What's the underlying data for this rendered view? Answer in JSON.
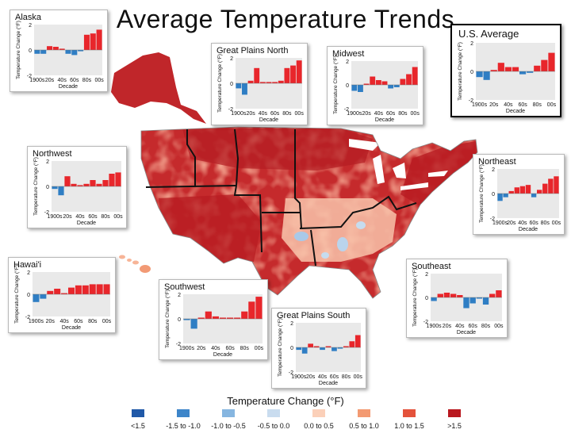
{
  "title": "Average Temperature Trends",
  "colors": {
    "positive": "#e8262b",
    "negative": "#2f7ec4",
    "plot_bg": "#e9e9e9",
    "map_red": [
      "#b31d23",
      "#d6352c",
      "#ec6a4e",
      "#f5a383",
      "#fbd2bd"
    ],
    "map_blue": [
      "#c7dcee",
      "#8fbcdf"
    ]
  },
  "chart_data": [
    {
      "type": "bar",
      "title": "Alaska",
      "categories": [
        "1900s",
        "10s",
        "20s",
        "30s",
        "40s",
        "50s",
        "60s",
        "70s",
        "80s",
        "90s",
        "00s"
      ],
      "tick_labels": [
        "1900s",
        "20s",
        "40s",
        "60s",
        "80s",
        "00s"
      ],
      "values": [
        -0.3,
        -0.3,
        0.3,
        0.25,
        0.1,
        -0.3,
        -0.4,
        -0.1,
        1.2,
        1.3,
        1.6
      ],
      "xlabel": "Decade",
      "ylabel": "Temperature Change (°F)",
      "ylim": [
        -2,
        2
      ],
      "yticks": [
        2,
        0,
        -2
      ],
      "grid": false
    },
    {
      "type": "bar",
      "title": "Great Plains North",
      "categories": [
        "1900s",
        "10s",
        "20s",
        "30s",
        "40s",
        "50s",
        "60s",
        "70s",
        "80s",
        "90s",
        "00s"
      ],
      "tick_labels": [
        "1900s",
        "20s",
        "40s",
        "60s",
        "80s",
        "00s"
      ],
      "values": [
        -0.4,
        -0.9,
        0.2,
        1.2,
        0.1,
        0.1,
        0.1,
        0.2,
        1.2,
        1.4,
        1.8
      ],
      "xlabel": "Decade",
      "ylabel": "Temperature Change (°F)",
      "ylim": [
        -2,
        2
      ],
      "yticks": [
        2,
        0,
        -2
      ],
      "grid": false
    },
    {
      "type": "bar",
      "title": "Midwest",
      "categories": [
        "1900s",
        "10s",
        "20s",
        "30s",
        "40s",
        "50s",
        "60s",
        "70s",
        "80s",
        "90s",
        "00s"
      ],
      "tick_labels": [
        "1900s",
        "20s",
        "40s",
        "60s",
        "80s",
        "00s"
      ],
      "values": [
        -0.5,
        -0.6,
        0.1,
        0.7,
        0.4,
        0.3,
        -0.3,
        -0.2,
        0.5,
        0.9,
        1.5
      ],
      "xlabel": "Decade",
      "ylabel": "Temperature Change (°F)",
      "ylim": [
        -2,
        2
      ],
      "yticks": [
        2,
        0,
        -2
      ],
      "grid": false
    },
    {
      "type": "bar",
      "title": "U.S. Average",
      "categories": [
        "1900s",
        "10s",
        "20s",
        "30s",
        "40s",
        "50s",
        "60s",
        "70s",
        "80s",
        "90s",
        "00s"
      ],
      "tick_labels": [
        "1900s",
        "20s",
        "40s",
        "60s",
        "80s",
        "00s"
      ],
      "values": [
        -0.4,
        -0.6,
        0.1,
        0.6,
        0.3,
        0.3,
        -0.2,
        -0.1,
        0.4,
        0.8,
        1.3
      ],
      "xlabel": "Decade",
      "ylabel": "Temperature Change (°F)",
      "ylim": [
        -2,
        2
      ],
      "yticks": [
        2,
        0,
        -2
      ],
      "grid": false
    },
    {
      "type": "bar",
      "title": "Northwest",
      "categories": [
        "1900s",
        "10s",
        "20s",
        "30s",
        "40s",
        "50s",
        "60s",
        "70s",
        "80s",
        "90s",
        "00s"
      ],
      "tick_labels": [
        "1900s",
        "20s",
        "40s",
        "60s",
        "80s",
        "00s"
      ],
      "values": [
        -0.2,
        -0.7,
        0.8,
        0.2,
        0.1,
        0.2,
        0.5,
        0.2,
        0.5,
        1.0,
        1.1
      ],
      "xlabel": "Decade",
      "ylabel": "Temperature Change (°F)",
      "ylim": [
        -2,
        2
      ],
      "yticks": [
        2,
        0,
        -2
      ],
      "grid": false
    },
    {
      "type": "bar",
      "title": "Northeast",
      "categories": [
        "1900s",
        "10s",
        "20s",
        "30s",
        "40s",
        "50s",
        "60s",
        "70s",
        "80s",
        "90s",
        "00s"
      ],
      "tick_labels": [
        "1900s",
        "20s",
        "40s",
        "60s",
        "80s",
        "00s"
      ],
      "values": [
        -0.6,
        -0.3,
        0.2,
        0.5,
        0.6,
        0.7,
        -0.3,
        0.3,
        0.8,
        1.2,
        1.4
      ],
      "xlabel": "Decade",
      "ylabel": "Temperature Change (°F)",
      "ylim": [
        -2,
        2
      ],
      "yticks": [
        2,
        0,
        -2
      ],
      "grid": false
    },
    {
      "type": "bar",
      "title": "Hawai'i",
      "categories": [
        "1900s",
        "10s",
        "20s",
        "30s",
        "40s",
        "50s",
        "60s",
        "70s",
        "80s",
        "90s",
        "00s"
      ],
      "tick_labels": [
        "1900s",
        "20s",
        "40s",
        "60s",
        "80s",
        "00s"
      ],
      "values": [
        -0.7,
        -0.4,
        0.3,
        0.5,
        0.1,
        0.6,
        0.8,
        0.8,
        0.9,
        0.9,
        0.9
      ],
      "xlabel": "Decade",
      "ylabel": "Temperature Change (°F)",
      "ylim": [
        -2,
        2
      ],
      "yticks": [
        2,
        0,
        -2
      ],
      "grid": false
    },
    {
      "type": "bar",
      "title": "Southwest",
      "categories": [
        "1900s",
        "10s",
        "20s",
        "30s",
        "40s",
        "50s",
        "60s",
        "70s",
        "80s",
        "90s",
        "00s"
      ],
      "tick_labels": [
        "1900s",
        "20s",
        "40s",
        "60s",
        "80s",
        "00s"
      ],
      "values": [
        -0.1,
        -0.8,
        0.1,
        0.6,
        0.2,
        0.1,
        0.1,
        0.1,
        0.6,
        1.4,
        1.8
      ],
      "xlabel": "Decade",
      "ylabel": "Temperature Change (°F)",
      "ylim": [
        -2,
        2
      ],
      "yticks": [
        2,
        0,
        -2
      ],
      "grid": false
    },
    {
      "type": "bar",
      "title": "Great Plains South",
      "categories": [
        "1900s",
        "10s",
        "20s",
        "30s",
        "40s",
        "50s",
        "60s",
        "70s",
        "80s",
        "90s",
        "00s"
      ],
      "tick_labels": [
        "1900s",
        "20s",
        "40s",
        "60s",
        "80s",
        "00s"
      ],
      "values": [
        -0.2,
        -0.5,
        0.3,
        0.1,
        -0.2,
        0.1,
        -0.3,
        -0.1,
        0.1,
        0.5,
        1.0
      ],
      "xlabel": "Decade",
      "ylabel": "Temperature Change (°F)",
      "ylim": [
        -2,
        2
      ],
      "yticks": [
        2,
        0,
        -2
      ],
      "grid": false
    },
    {
      "type": "bar",
      "title": "Southeast",
      "categories": [
        "1900s",
        "10s",
        "20s",
        "30s",
        "40s",
        "50s",
        "60s",
        "70s",
        "80s",
        "90s",
        "00s"
      ],
      "tick_labels": [
        "1900s",
        "20s",
        "40s",
        "60s",
        "80s",
        "00s"
      ],
      "values": [
        -0.3,
        0.3,
        0.4,
        0.3,
        0.2,
        -0.9,
        -0.5,
        -0.1,
        -0.6,
        0.3,
        0.6
      ],
      "xlabel": "Decade",
      "ylabel": "Temperature Change (°F)",
      "ylim": [
        -2,
        2
      ],
      "yticks": [
        2,
        0,
        -2
      ],
      "grid": false
    }
  ],
  "legend": {
    "title": "Temperature Change (°F)",
    "items": [
      {
        "label": "<1.5",
        "color": "#2059a8"
      },
      {
        "label": "-1.5 to -1.0",
        "color": "#3d85c9"
      },
      {
        "label": "-1.0 to -0.5",
        "color": "#86b6e0"
      },
      {
        "label": "-0.5 to 0.0",
        "color": "#c9dcef"
      },
      {
        "label": "0.0 to 0.5",
        "color": "#fbd0b9"
      },
      {
        "label": "0.5 to 1.0",
        "color": "#f39a72"
      },
      {
        "label": "1.0 to 1.5",
        "color": "#e4523b"
      },
      {
        "label": ">1.5",
        "color": "#b9181f"
      }
    ]
  }
}
